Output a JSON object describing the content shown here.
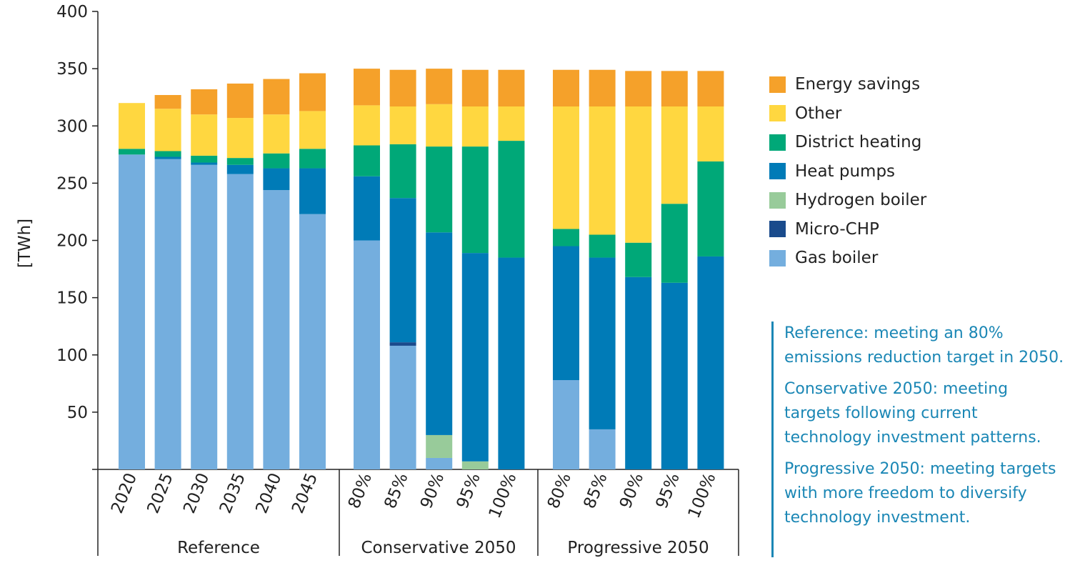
{
  "chart_data": {
    "type": "bar",
    "stacked": true,
    "ylabel": "[TWh]",
    "ylim": [
      0,
      400
    ],
    "yticks": [
      50,
      100,
      150,
      200,
      250,
      300,
      350,
      400
    ],
    "groups": [
      {
        "name": "Reference",
        "categories": [
          "2020",
          "2025",
          "2030",
          "2035",
          "2040",
          "2045"
        ]
      },
      {
        "name": "Conservative 2050",
        "categories": [
          "80%",
          "85%",
          "90%",
          "95%",
          "100%"
        ]
      },
      {
        "name": "Progressive 2050",
        "categories": [
          "80%",
          "85%",
          "90%",
          "95%",
          "100%"
        ]
      }
    ],
    "series": [
      {
        "name": "Gas boiler",
        "color": "#74aede",
        "values": [
          275,
          271,
          266,
          258,
          244,
          223,
          200,
          108,
          10,
          0,
          0,
          78,
          35,
          0,
          0,
          0
        ]
      },
      {
        "name": "Micro-CHP",
        "color": "#1a4b8c",
        "values": [
          0,
          0,
          0,
          0,
          0,
          0,
          0,
          3,
          0,
          0,
          0,
          0,
          0,
          0,
          0,
          0
        ]
      },
      {
        "name": "Hydrogen boiler",
        "color": "#98cb9a",
        "values": [
          0,
          0,
          0,
          0,
          0,
          0,
          0,
          0,
          20,
          7,
          0,
          0,
          0,
          0,
          0,
          0
        ]
      },
      {
        "name": "Heat pumps",
        "color": "#007bb7",
        "values": [
          0,
          2,
          2,
          8,
          19,
          40,
          56,
          126,
          177,
          182,
          185,
          117,
          150,
          168,
          163,
          186
        ]
      },
      {
        "name": "District heating",
        "color": "#00a878",
        "values": [
          5,
          5,
          6,
          6,
          13,
          17,
          27,
          47,
          75,
          93,
          102,
          15,
          20,
          30,
          69,
          83
        ]
      },
      {
        "name": "Other",
        "color": "#ffd740",
        "values": [
          40,
          37,
          36,
          35,
          34,
          33,
          35,
          33,
          37,
          35,
          30,
          107,
          112,
          119,
          85,
          48
        ]
      },
      {
        "name": "Energy savings",
        "color": "#f5a12a",
        "values": [
          0,
          12,
          22,
          30,
          31,
          33,
          32,
          32,
          31,
          32,
          32,
          32,
          32,
          31,
          31,
          31
        ]
      }
    ]
  },
  "legend": {
    "items": [
      {
        "label": "Energy savings",
        "color": "#f5a12a"
      },
      {
        "label": "Other",
        "color": "#ffd740"
      },
      {
        "label": "District heating",
        "color": "#00a878"
      },
      {
        "label": "Heat pumps",
        "color": "#007bb7"
      },
      {
        "label": "Hydrogen boiler",
        "color": "#98cb9a"
      },
      {
        "label": "Micro-CHP",
        "color": "#1a4b8c"
      },
      {
        "label": "Gas boiler",
        "color": "#74aede"
      }
    ]
  },
  "notes": {
    "reference": "Reference: meeting an 80% emissions reduction target in 2050.",
    "conservative": "Conservative 2050: meeting targets following current technology investment patterns.",
    "progressive": "Progressive 2050: meeting targets with more freedom to diversify technology investment."
  }
}
